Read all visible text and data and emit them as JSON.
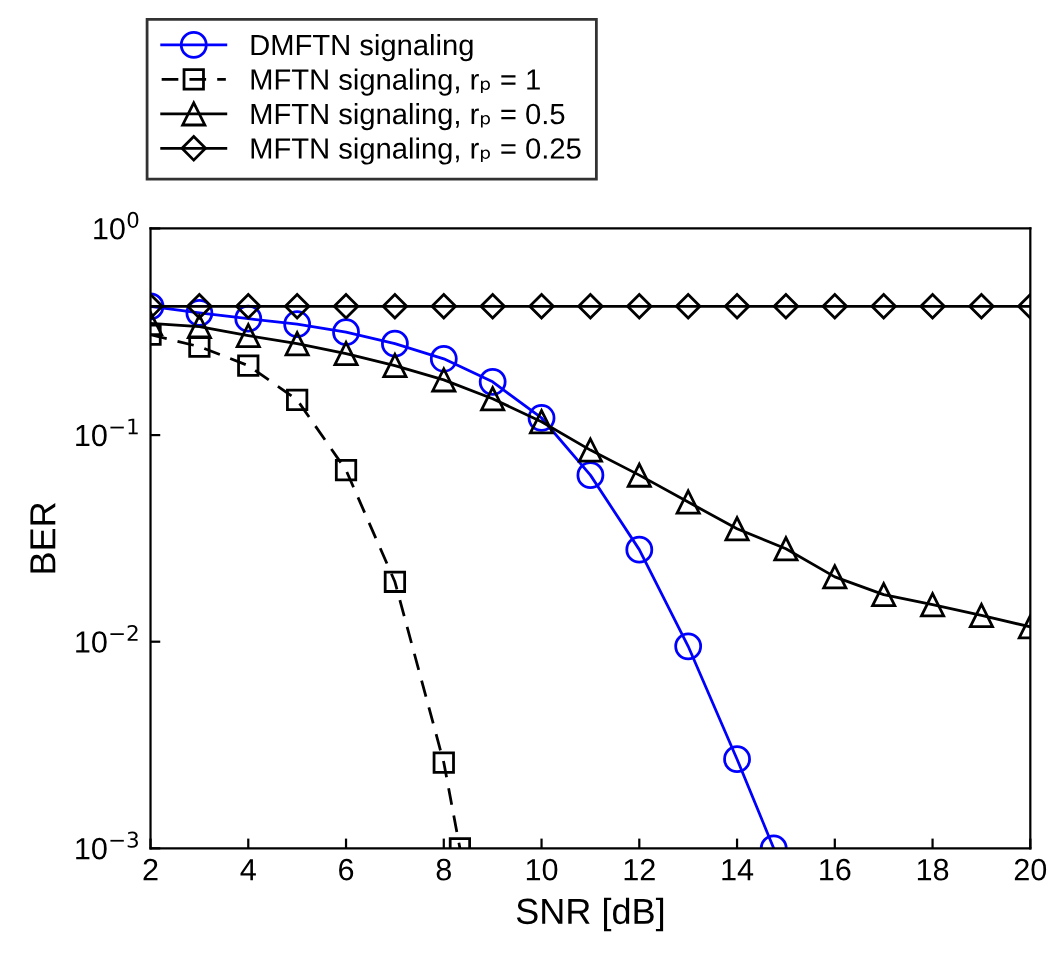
{
  "chart_data": {
    "type": "line",
    "xlabel": "SNR [dB]",
    "ylabel": "BER",
    "log": "y",
    "xlim": [
      2,
      20
    ],
    "xticks": [
      2,
      4,
      6,
      8,
      10,
      12,
      14,
      16,
      18,
      20
    ],
    "ylim": [
      0.001,
      1
    ],
    "yticks": [
      {
        "value": 0.001,
        "label": "10$^{−3}$"
      },
      {
        "value": 0.01,
        "label": "10$^{−2}$"
      },
      {
        "value": 0.1,
        "label": "10$^{−1}$"
      },
      {
        "value": 1,
        "label": "10$^{0}$"
      }
    ],
    "grid": false,
    "legend": "top left",
    "series": [
      {
        "name": "DMFTN signaling",
        "color": "#0000ff",
        "marker": "circle",
        "line_style": "solid",
        "x": [
          2,
          3,
          4,
          5,
          6,
          7,
          8,
          9,
          10,
          11,
          12,
          13,
          14,
          14.75
        ],
        "values": [
          0.42,
          0.39,
          0.366,
          0.344,
          0.315,
          0.277,
          0.234,
          0.181,
          0.121,
          0.064,
          0.0279,
          0.0095,
          0.0027,
          0.001
        ]
      },
      {
        "name": "MFTN signaling, rₚ = 1",
        "color": "#000000",
        "marker": "square",
        "line_style": "dashed",
        "x": [
          2,
          3,
          4,
          5,
          6,
          7,
          8,
          8.33
        ],
        "values": [
          0.306,
          0.268,
          0.217,
          0.148,
          0.0677,
          0.0195,
          0.0026,
          0.001
        ]
      },
      {
        "name": "MFTN signaling, rₚ = 0.5",
        "color": "#000000",
        "marker": "triangle",
        "line_style": "solid",
        "x": [
          2,
          3,
          4,
          5,
          6,
          7,
          8,
          9,
          10,
          11,
          12,
          13,
          14,
          15,
          16,
          17,
          18,
          19,
          20
        ],
        "values": [
          0.347,
          0.335,
          0.303,
          0.277,
          0.248,
          0.217,
          0.185,
          0.15,
          0.116,
          0.0846,
          0.064,
          0.0474,
          0.0352,
          0.0282,
          0.0206,
          0.0169,
          0.0151,
          0.0134,
          0.0118
        ]
      },
      {
        "name": "MFTN signaling, rₚ = 0.25",
        "color": "#000000",
        "marker": "diamond",
        "line_style": "solid",
        "x": [
          2,
          3,
          4,
          5,
          6,
          7,
          8,
          9,
          10,
          11,
          12,
          13,
          14,
          15,
          16,
          17,
          18,
          19,
          20
        ],
        "values": [
          0.42,
          0.42,
          0.42,
          0.42,
          0.42,
          0.42,
          0.42,
          0.42,
          0.42,
          0.42,
          0.42,
          0.42,
          0.42,
          0.42,
          0.42,
          0.42,
          0.42,
          0.42,
          0.42
        ]
      }
    ]
  }
}
